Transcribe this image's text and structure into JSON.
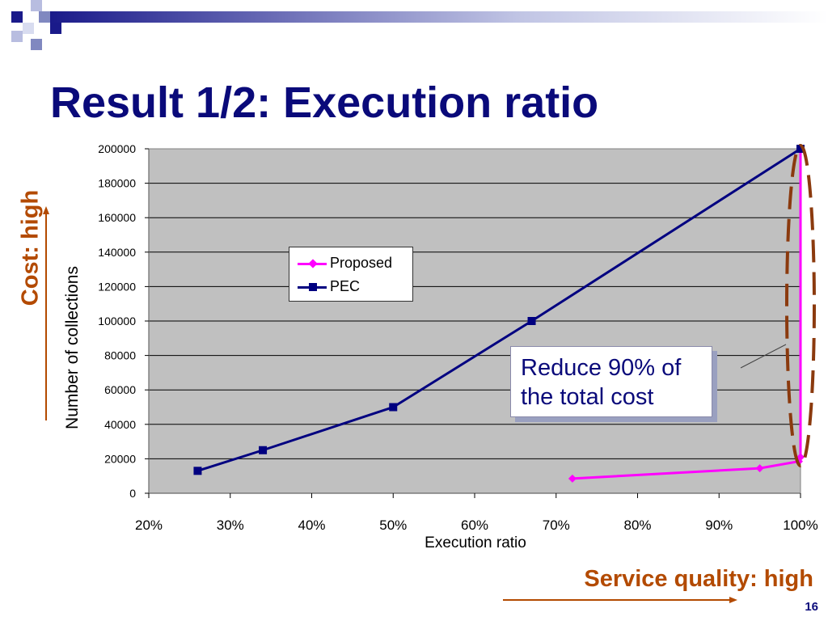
{
  "slide": {
    "title": "Result 1/2: Execution ratio",
    "page_number": "16",
    "cost_annotation": "Cost: high",
    "quality_annotation": "Service quality: high",
    "callout_text": "Reduce 90% of the total cost",
    "colors": {
      "title": "#0a0a7a",
      "annotation": "#b34a00",
      "plot_bg": "#c0c0c0",
      "proposed": "#ff00ff",
      "pec": "#000080"
    }
  },
  "chart_data": {
    "type": "line",
    "title": "",
    "xlabel": "Execution ratio",
    "ylabel": "Number of collections",
    "xlim": [
      20,
      100
    ],
    "ylim": [
      0,
      200000
    ],
    "x_ticks": [
      "20%",
      "30%",
      "40%",
      "50%",
      "60%",
      "70%",
      "80%",
      "90%",
      "100%"
    ],
    "y_ticks": [
      "0",
      "20000",
      "40000",
      "60000",
      "80000",
      "100000",
      "120000",
      "140000",
      "160000",
      "180000",
      "200000"
    ],
    "grid": true,
    "legend_position": "upper-center",
    "series": [
      {
        "name": "Proposed",
        "color": "#ff00ff",
        "marker": "diamond",
        "points": [
          [
            72,
            8500
          ],
          [
            95,
            14500
          ],
          [
            99.8,
            18500
          ],
          [
            100,
            21000
          ],
          [
            100,
            200000
          ]
        ]
      },
      {
        "name": "PEC",
        "color": "#000080",
        "marker": "square",
        "points": [
          [
            26,
            13000
          ],
          [
            34,
            25000
          ],
          [
            50,
            50000
          ],
          [
            67,
            100000
          ],
          [
            100,
            200000
          ]
        ]
      }
    ]
  }
}
